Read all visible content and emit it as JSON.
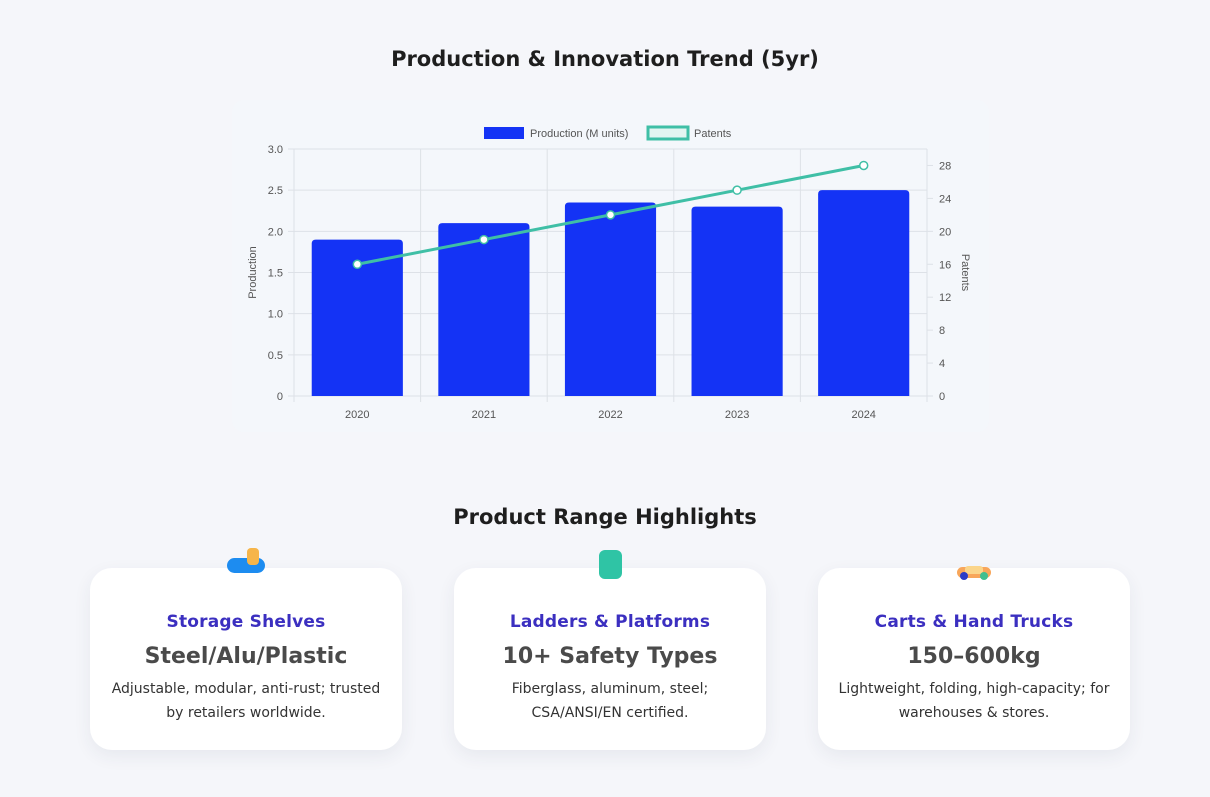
{
  "chart_section": {
    "title": "Production & Innovation Trend (5yr)"
  },
  "chart_data": {
    "type": "bar",
    "categories": [
      "2020",
      "2021",
      "2022",
      "2023",
      "2024"
    ],
    "series": [
      {
        "name": "Production (M units)",
        "type": "bar",
        "axis": "left",
        "values": [
          1.9,
          2.1,
          2.35,
          2.3,
          2.5
        ],
        "color": "#1433f5"
      },
      {
        "name": "Patents",
        "type": "line",
        "axis": "right",
        "values": [
          16,
          19,
          22,
          25,
          28
        ],
        "color": "#3fbfa6"
      }
    ],
    "y_left": {
      "label": "Production",
      "min": 0,
      "max": 3,
      "ticks": [
        "0",
        "0.5",
        "1.0",
        "1.5",
        "2.0",
        "2.5",
        "3.0"
      ]
    },
    "y_right": {
      "label": "Patents",
      "min": 0,
      "max": 30,
      "ticks": [
        "0",
        "4",
        "8",
        "12",
        "16",
        "20",
        "24",
        "28"
      ]
    },
    "legend": "top-center",
    "grid": true
  },
  "range_section": {
    "title": "Product Range Highlights",
    "cards": [
      {
        "title": "Storage Shelves",
        "value": "Steel/Alu/Plastic",
        "desc": "Adjustable, modular, anti-rust; trusted by retailers worldwide.",
        "icon": "shelf-icon"
      },
      {
        "title": "Ladders & Platforms",
        "value": "10+ Safety Types",
        "desc": "Fiberglass, aluminum, steel; CSA/ANSI/EN certified.",
        "icon": "ladder-icon"
      },
      {
        "title": "Carts & Hand Trucks",
        "value": "150–600kg",
        "desc": "Lightweight, folding, high-capacity; for warehouses & stores.",
        "icon": "cart-icon"
      }
    ]
  }
}
